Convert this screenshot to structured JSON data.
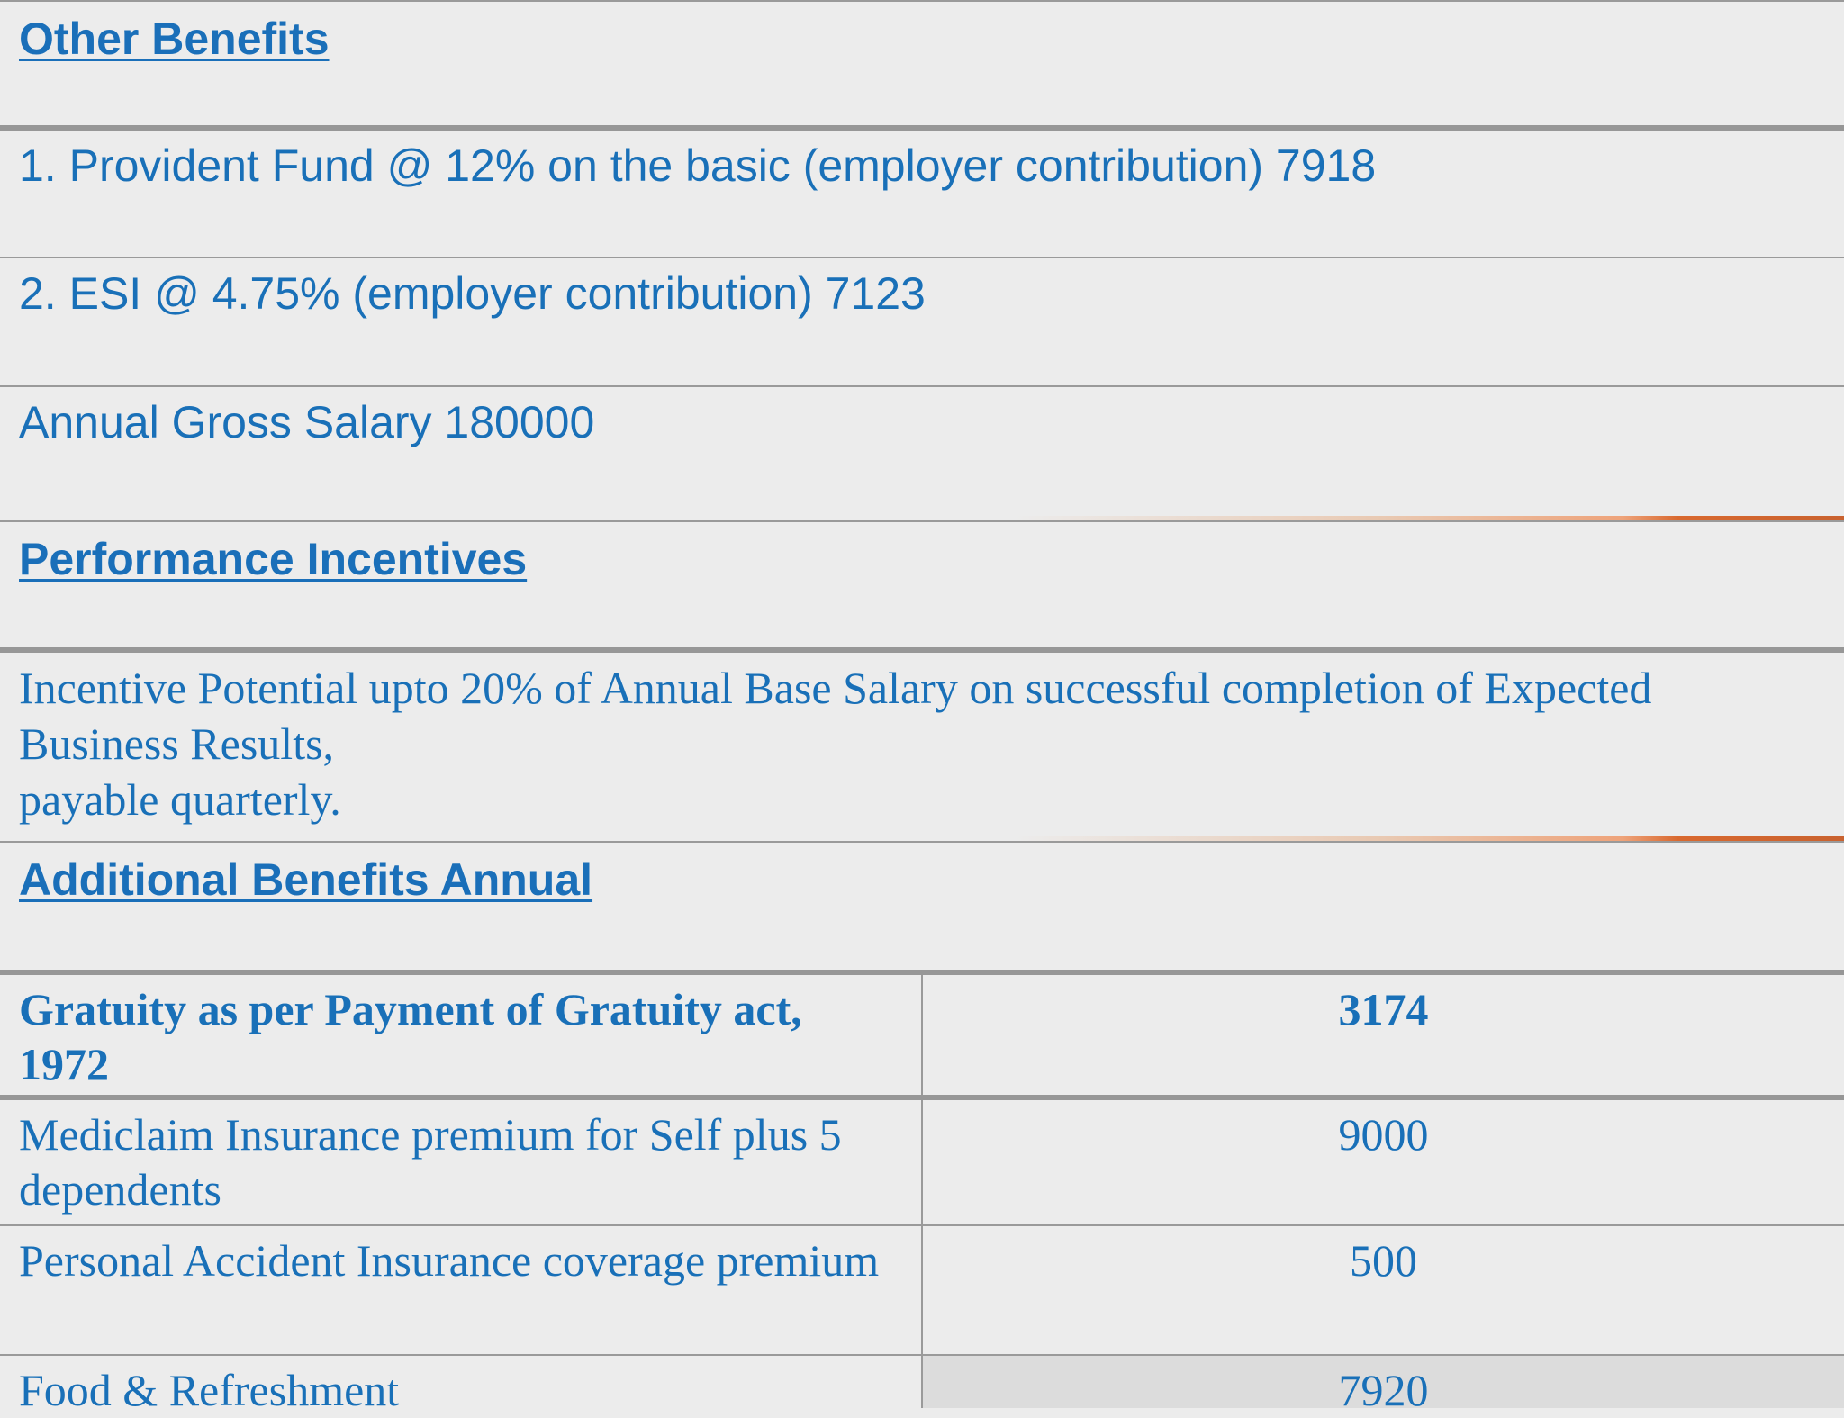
{
  "sections": {
    "other_benefits": {
      "heading": "Other Benefits",
      "items": [
        "1. Provident Fund @ 12% on the basic (employer contribution) 7918",
        "2. ESI @ 4.75% (employer contribution) 7123"
      ],
      "gross": "Annual Gross Salary 180000"
    },
    "performance_incentives": {
      "heading": "Performance Incentives",
      "text_line1": "Incentive Potential upto 20% of Annual Base Salary on successful completion of Expected",
      "text_line2": "Business Results,",
      "text_line3": "payable quarterly."
    },
    "additional_benefits": {
      "heading": "Additional Benefits Annual",
      "rows": [
        {
          "label_line1": "Gratuity as per Payment of Gratuity act,",
          "label_line2": "1972",
          "value": "3174"
        },
        {
          "label_line1": "Mediclaim Insurance premium for Self plus 5",
          "label_line2": "dependents",
          "value": "9000"
        },
        {
          "label_line1": "Personal Accident Insurance coverage premium",
          "label_line2": "",
          "value": "500"
        },
        {
          "label_line1": "Food & Refreshment",
          "label_line2": "",
          "value": "7920"
        }
      ]
    }
  },
  "colors": {
    "text": "#1970b8",
    "background": "#ececec",
    "border": "#9a9a9a",
    "accent": "#d9692f"
  }
}
